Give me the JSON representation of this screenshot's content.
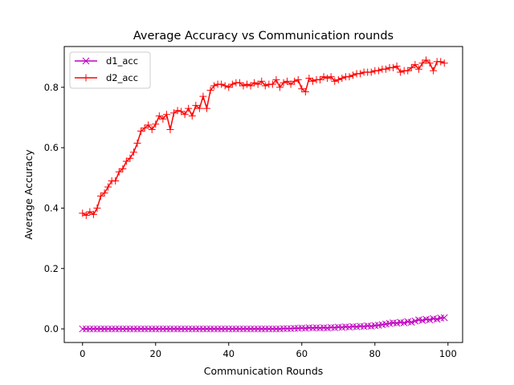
{
  "chart_data": {
    "type": "line",
    "title": "Average Accuracy vs Communication rounds",
    "xlabel": "Communication Rounds",
    "ylabel": "Average Accuracy",
    "xlim": [
      -5,
      104
    ],
    "ylim": [
      -0.045,
      0.935
    ],
    "xticks": [
      0,
      20,
      40,
      60,
      80,
      100
    ],
    "yticks": [
      0.0,
      0.2,
      0.4,
      0.6,
      0.8
    ],
    "xtick_labels": [
      "0",
      "20",
      "40",
      "60",
      "80",
      "100"
    ],
    "ytick_labels": [
      "0.0",
      "0.2",
      "0.4",
      "0.6",
      "0.8"
    ],
    "grid": false,
    "legend": "top-left",
    "x": [
      0,
      1,
      2,
      3,
      4,
      5,
      6,
      7,
      8,
      9,
      10,
      11,
      12,
      13,
      14,
      15,
      16,
      17,
      18,
      19,
      20,
      21,
      22,
      23,
      24,
      25,
      26,
      27,
      28,
      29,
      30,
      31,
      32,
      33,
      34,
      35,
      36,
      37,
      38,
      39,
      40,
      41,
      42,
      43,
      44,
      45,
      46,
      47,
      48,
      49,
      50,
      51,
      52,
      53,
      54,
      55,
      56,
      57,
      58,
      59,
      60,
      61,
      62,
      63,
      64,
      65,
      66,
      67,
      68,
      69,
      70,
      71,
      72,
      73,
      74,
      75,
      76,
      77,
      78,
      79,
      80,
      81,
      82,
      83,
      84,
      85,
      86,
      87,
      88,
      89,
      90,
      91,
      92,
      93,
      94,
      95,
      96,
      97,
      98,
      99
    ],
    "series": [
      {
        "name": "d1_acc",
        "color": "#bf00bf",
        "marker": "x",
        "values": [
          0.0,
          0.0,
          0.0,
          0.0,
          0.0,
          0.0,
          0.0,
          0.0,
          0.0,
          0.0,
          0.0,
          0.0,
          0.0,
          0.0,
          0.0,
          0.0,
          0.0,
          0.0,
          0.0,
          0.0,
          0.0,
          0.0,
          0.0,
          0.0,
          0.0,
          0.0,
          0.0,
          0.0,
          0.0,
          0.0,
          0.0,
          0.0,
          0.0,
          0.0,
          0.0,
          0.0,
          0.0,
          0.0,
          0.0,
          0.0,
          0.0,
          0.0,
          0.0,
          0.0,
          0.0,
          0.0,
          0.0,
          0.0,
          0.0,
          0.0,
          0.0,
          0.0,
          0.0,
          0.0,
          0.0,
          0.001,
          0.001,
          0.001,
          0.002,
          0.002,
          0.003,
          0.002,
          0.004,
          0.003,
          0.004,
          0.003,
          0.004,
          0.003,
          0.005,
          0.004,
          0.006,
          0.005,
          0.007,
          0.006,
          0.008,
          0.007,
          0.009,
          0.008,
          0.01,
          0.009,
          0.011,
          0.012,
          0.014,
          0.016,
          0.018,
          0.02,
          0.019,
          0.022,
          0.02,
          0.024,
          0.022,
          0.026,
          0.03,
          0.028,
          0.032,
          0.03,
          0.034,
          0.032,
          0.036,
          0.037
        ]
      },
      {
        "name": "d2_acc",
        "color": "#ff0000",
        "marker": "+",
        "values": [
          0.383,
          0.376,
          0.388,
          0.379,
          0.4,
          0.44,
          0.45,
          0.47,
          0.49,
          0.49,
          0.52,
          0.53,
          0.555,
          0.565,
          0.585,
          0.615,
          0.655,
          0.665,
          0.675,
          0.66,
          0.678,
          0.705,
          0.695,
          0.71,
          0.66,
          0.715,
          0.723,
          0.72,
          0.71,
          0.73,
          0.705,
          0.74,
          0.73,
          0.77,
          0.73,
          0.79,
          0.805,
          0.81,
          0.81,
          0.805,
          0.8,
          0.81,
          0.815,
          0.815,
          0.805,
          0.81,
          0.805,
          0.815,
          0.81,
          0.82,
          0.805,
          0.81,
          0.81,
          0.825,
          0.8,
          0.815,
          0.82,
          0.81,
          0.82,
          0.825,
          0.795,
          0.785,
          0.83,
          0.82,
          0.825,
          0.825,
          0.835,
          0.83,
          0.835,
          0.82,
          0.825,
          0.83,
          0.835,
          0.835,
          0.84,
          0.845,
          0.845,
          0.85,
          0.85,
          0.85,
          0.855,
          0.855,
          0.86,
          0.86,
          0.865,
          0.865,
          0.87,
          0.85,
          0.855,
          0.855,
          0.865,
          0.875,
          0.86,
          0.88,
          0.89,
          0.88,
          0.855,
          0.885,
          0.885,
          0.88
        ]
      }
    ]
  }
}
